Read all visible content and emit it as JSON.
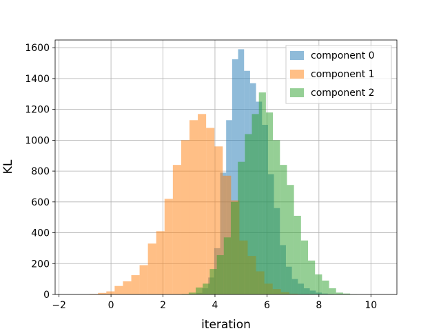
{
  "chart_data": {
    "type": "bar",
    "subtype": "overlaid-histogram",
    "xlabel": "iteration",
    "ylabel": "KL",
    "xlim": [
      -2.15,
      11.0
    ],
    "ylim": [
      0,
      1650
    ],
    "xticks": [
      -2,
      0,
      2,
      4,
      6,
      8,
      10
    ],
    "yticks": [
      0,
      200,
      400,
      600,
      800,
      1000,
      1200,
      1400,
      1600
    ],
    "grid": true,
    "legend_position": "top-right",
    "series": [
      {
        "name": "component 0",
        "color": "#1f77b4",
        "opacity": 0.5,
        "bins": [
          {
            "x0": 3.05,
            "x1": 3.28,
            "count": 3
          },
          {
            "x0": 3.28,
            "x1": 3.51,
            "count": 10
          },
          {
            "x0": 3.51,
            "x1": 3.74,
            "count": 40
          },
          {
            "x0": 3.74,
            "x1": 3.97,
            "count": 110
          },
          {
            "x0": 3.97,
            "x1": 4.2,
            "count": 300
          },
          {
            "x0": 4.2,
            "x1": 4.43,
            "count": 790
          },
          {
            "x0": 4.43,
            "x1": 4.66,
            "count": 1130
          },
          {
            "x0": 4.66,
            "x1": 4.89,
            "count": 1525
          },
          {
            "x0": 4.89,
            "x1": 5.12,
            "count": 1590
          },
          {
            "x0": 5.12,
            "x1": 5.35,
            "count": 1450
          },
          {
            "x0": 5.35,
            "x1": 5.58,
            "count": 1370
          },
          {
            "x0": 5.58,
            "x1": 5.81,
            "count": 1250
          },
          {
            "x0": 5.81,
            "x1": 6.04,
            "count": 1100
          },
          {
            "x0": 6.04,
            "x1": 6.27,
            "count": 780
          },
          {
            "x0": 6.27,
            "x1": 6.5,
            "count": 560
          },
          {
            "x0": 6.5,
            "x1": 6.73,
            "count": 320
          },
          {
            "x0": 6.73,
            "x1": 6.96,
            "count": 180
          },
          {
            "x0": 6.96,
            "x1": 7.19,
            "count": 100
          },
          {
            "x0": 7.19,
            "x1": 7.42,
            "count": 70
          },
          {
            "x0": 7.42,
            "x1": 7.65,
            "count": 40
          },
          {
            "x0": 7.65,
            "x1": 7.88,
            "count": 25
          },
          {
            "x0": 7.88,
            "x1": 8.11,
            "count": 12
          },
          {
            "x0": 8.11,
            "x1": 8.34,
            "count": 6
          },
          {
            "x0": 8.34,
            "x1": 8.57,
            "count": 3
          }
        ]
      },
      {
        "name": "component 1",
        "color": "#ff7f0e",
        "opacity": 0.5,
        "bins": [
          {
            "x0": -0.82,
            "x1": -0.5,
            "count": 3
          },
          {
            "x0": -0.5,
            "x1": -0.18,
            "count": 10
          },
          {
            "x0": -0.18,
            "x1": 0.14,
            "count": 20
          },
          {
            "x0": 0.14,
            "x1": 0.46,
            "count": 55
          },
          {
            "x0": 0.46,
            "x1": 0.78,
            "count": 85
          },
          {
            "x0": 0.78,
            "x1": 1.1,
            "count": 125
          },
          {
            "x0": 1.1,
            "x1": 1.42,
            "count": 190
          },
          {
            "x0": 1.42,
            "x1": 1.74,
            "count": 330
          },
          {
            "x0": 1.74,
            "x1": 2.06,
            "count": 410
          },
          {
            "x0": 2.06,
            "x1": 2.38,
            "count": 620
          },
          {
            "x0": 2.38,
            "x1": 2.7,
            "count": 840
          },
          {
            "x0": 2.7,
            "x1": 3.02,
            "count": 1000
          },
          {
            "x0": 3.02,
            "x1": 3.34,
            "count": 1130
          },
          {
            "x0": 3.34,
            "x1": 3.66,
            "count": 1170
          },
          {
            "x0": 3.66,
            "x1": 3.98,
            "count": 1080
          },
          {
            "x0": 3.98,
            "x1": 4.3,
            "count": 960
          },
          {
            "x0": 4.3,
            "x1": 4.62,
            "count": 770
          },
          {
            "x0": 4.62,
            "x1": 4.94,
            "count": 610
          },
          {
            "x0": 4.94,
            "x1": 5.26,
            "count": 350
          },
          {
            "x0": 5.26,
            "x1": 5.58,
            "count": 250
          },
          {
            "x0": 5.58,
            "x1": 5.9,
            "count": 150
          },
          {
            "x0": 5.9,
            "x1": 6.22,
            "count": 70
          },
          {
            "x0": 6.22,
            "x1": 6.54,
            "count": 35
          },
          {
            "x0": 6.54,
            "x1": 6.86,
            "count": 15
          },
          {
            "x0": 6.86,
            "x1": 7.18,
            "count": 5
          }
        ]
      },
      {
        "name": "component 2",
        "color": "#2ca02c",
        "opacity": 0.5,
        "bins": [
          {
            "x0": 2.72,
            "x1": 2.99,
            "count": 3
          },
          {
            "x0": 2.99,
            "x1": 3.26,
            "count": 12
          },
          {
            "x0": 3.26,
            "x1": 3.53,
            "count": 45
          },
          {
            "x0": 3.53,
            "x1": 3.8,
            "count": 70
          },
          {
            "x0": 3.8,
            "x1": 4.07,
            "count": 165
          },
          {
            "x0": 4.07,
            "x1": 4.34,
            "count": 255
          },
          {
            "x0": 4.34,
            "x1": 4.61,
            "count": 370
          },
          {
            "x0": 4.61,
            "x1": 4.88,
            "count": 600
          },
          {
            "x0": 4.88,
            "x1": 5.15,
            "count": 860
          },
          {
            "x0": 5.15,
            "x1": 5.42,
            "count": 1040
          },
          {
            "x0": 5.42,
            "x1": 5.69,
            "count": 1170
          },
          {
            "x0": 5.69,
            "x1": 5.96,
            "count": 1310
          },
          {
            "x0": 5.96,
            "x1": 6.23,
            "count": 1180
          },
          {
            "x0": 6.23,
            "x1": 6.5,
            "count": 1000
          },
          {
            "x0": 6.5,
            "x1": 6.77,
            "count": 840
          },
          {
            "x0": 6.77,
            "x1": 7.04,
            "count": 710
          },
          {
            "x0": 7.04,
            "x1": 7.31,
            "count": 510
          },
          {
            "x0": 7.31,
            "x1": 7.58,
            "count": 350
          },
          {
            "x0": 7.58,
            "x1": 7.85,
            "count": 220
          },
          {
            "x0": 7.85,
            "x1": 8.12,
            "count": 130
          },
          {
            "x0": 8.12,
            "x1": 8.39,
            "count": 90
          },
          {
            "x0": 8.39,
            "x1": 8.66,
            "count": 40
          },
          {
            "x0": 8.66,
            "x1": 8.93,
            "count": 12
          },
          {
            "x0": 8.93,
            "x1": 9.2,
            "count": 6
          },
          {
            "x0": 9.2,
            "x1": 9.47,
            "count": 2
          }
        ]
      }
    ]
  }
}
